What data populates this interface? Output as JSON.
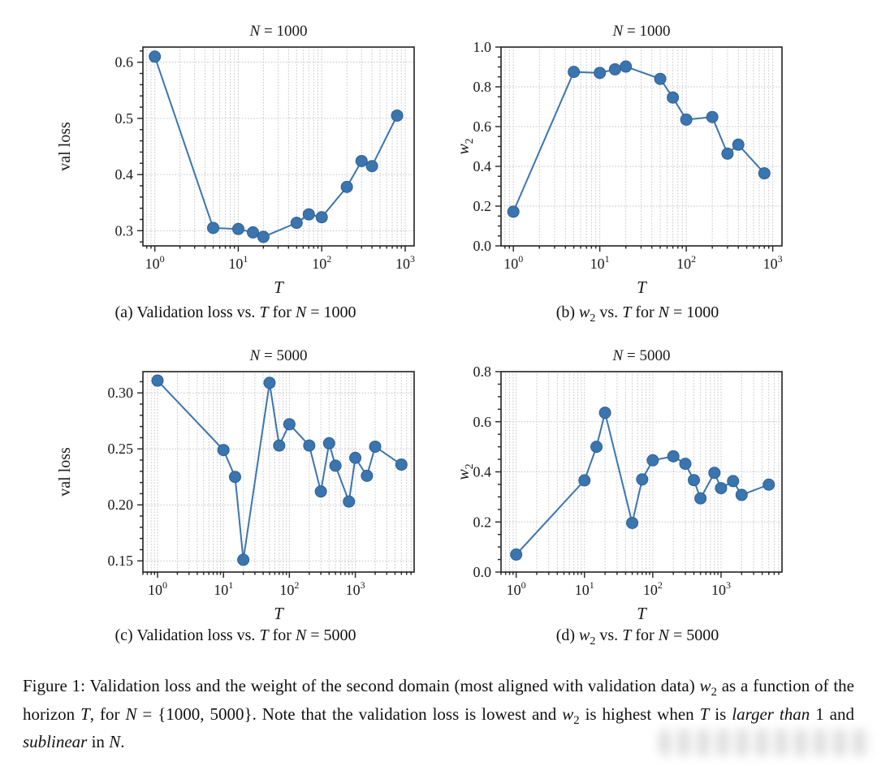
{
  "colors": {
    "accent_blue": "#3b75af",
    "marker_edge": "#2f6093",
    "grid": "#c9c9c9",
    "axis": "#222222",
    "text": "#1a1a1a",
    "background": "#ffffff"
  },
  "figure": {
    "captions": {
      "a": [
        {
          "t": "(a) Validation loss vs. "
        },
        {
          "t": "T",
          "i": true
        },
        {
          "t": " for "
        },
        {
          "t": "N",
          "i": true
        },
        {
          "t": " = 1000"
        }
      ],
      "b": [
        {
          "t": "(b) "
        },
        {
          "t": "w",
          "i": true
        },
        {
          "t": "2",
          "sub": true
        },
        {
          "t": " vs. "
        },
        {
          "t": "T",
          "i": true
        },
        {
          "t": " for "
        },
        {
          "t": "N",
          "i": true
        },
        {
          "t": " = 1000"
        }
      ],
      "c": [
        {
          "t": "(c) Validation loss vs. "
        },
        {
          "t": "T",
          "i": true
        },
        {
          "t": " for "
        },
        {
          "t": "N",
          "i": true
        },
        {
          "t": " = 5000"
        }
      ],
      "d": [
        {
          "t": "(d) "
        },
        {
          "t": "w",
          "i": true
        },
        {
          "t": "2",
          "sub": true
        },
        {
          "t": " vs. "
        },
        {
          "t": "T",
          "i": true
        },
        {
          "t": " for "
        },
        {
          "t": "N",
          "i": true
        },
        {
          "t": " = 5000"
        }
      ]
    },
    "main_caption": [
      {
        "t": "Figure 1: Validation loss and the weight of the second domain (most aligned with validation data) "
      },
      {
        "t": "w",
        "i": true
      },
      {
        "t": "2",
        "sub": true
      },
      {
        "t": " as a function of the horizon "
      },
      {
        "t": "T",
        "i": true
      },
      {
        "t": ", for "
      },
      {
        "t": "N",
        "i": true
      },
      {
        "t": " = {1000, 5000}. Note that the validation loss is lowest and "
      },
      {
        "t": "w",
        "i": true
      },
      {
        "t": "2",
        "sub": true
      },
      {
        "t": " is highest when "
      },
      {
        "t": "T",
        "i": true
      },
      {
        "t": " is "
      },
      {
        "t": "larger than",
        "i": true
      },
      {
        "t": " 1 and "
      },
      {
        "t": "sublinear",
        "i": true
      },
      {
        "t": " in "
      },
      {
        "t": "N",
        "i": true
      },
      {
        "t": "."
      }
    ]
  },
  "chart_data": [
    {
      "id": "a",
      "type": "line",
      "title": [
        {
          "t": "N",
          "i": true
        },
        {
          "t": " = 1000"
        }
      ],
      "xlabel": [
        {
          "t": "T",
          "i": true
        }
      ],
      "ylabel": [
        {
          "t": "val loss"
        }
      ],
      "xscale": "log",
      "x": [
        1,
        5,
        10,
        15,
        20,
        50,
        70,
        100,
        200,
        300,
        400,
        800
      ],
      "y": [
        0.61,
        0.305,
        0.303,
        0.297,
        0.289,
        0.314,
        0.329,
        0.324,
        0.378,
        0.424,
        0.415,
        0.505
      ],
      "xlim": [
        0.72,
        1280
      ],
      "ylim": [
        0.273,
        0.627
      ],
      "yticks": [
        0.3,
        0.4,
        0.5,
        0.6
      ],
      "ytick_labels": [
        "0.3",
        "0.4",
        "0.5",
        "0.6"
      ],
      "xtick_exponents": [
        0,
        1,
        2,
        3
      ],
      "y_minor_per_major": 5,
      "grid": true,
      "legend": "none"
    },
    {
      "id": "b",
      "type": "line",
      "title": [
        {
          "t": "N",
          "i": true
        },
        {
          "t": " = 1000"
        }
      ],
      "xlabel": [
        {
          "t": "T",
          "i": true
        }
      ],
      "ylabel": [
        {
          "t": "w",
          "i": true
        },
        {
          "t": "2",
          "sub": true
        }
      ],
      "xscale": "log",
      "x": [
        1,
        5,
        10,
        15,
        20,
        50,
        70,
        100,
        200,
        300,
        400,
        800
      ],
      "y": [
        0.172,
        0.875,
        0.87,
        0.888,
        0.902,
        0.84,
        0.746,
        0.635,
        0.648,
        0.464,
        0.509,
        0.365
      ],
      "xlim": [
        0.72,
        1280
      ],
      "ylim": [
        0.0,
        1.0
      ],
      "yticks": [
        0.0,
        0.2,
        0.4,
        0.6,
        0.8,
        1.0
      ],
      "ytick_labels": [
        "0.0",
        "0.2",
        "0.4",
        "0.6",
        "0.8",
        "1.0"
      ],
      "xtick_exponents": [
        0,
        1,
        2,
        3
      ],
      "y_minor_per_major": 4,
      "grid": true,
      "legend": "none"
    },
    {
      "id": "c",
      "type": "line",
      "title": [
        {
          "t": "N",
          "i": true
        },
        {
          "t": " = 5000"
        }
      ],
      "xlabel": [
        {
          "t": "T",
          "i": true
        }
      ],
      "ylabel": [
        {
          "t": "val loss"
        }
      ],
      "xscale": "log",
      "x": [
        1,
        10,
        15,
        20,
        50,
        70,
        100,
        200,
        300,
        400,
        500,
        800,
        1000,
        1500,
        2000,
        5000
      ],
      "y": [
        0.311,
        0.249,
        0.225,
        0.151,
        0.309,
        0.253,
        0.272,
        0.253,
        0.212,
        0.255,
        0.235,
        0.203,
        0.242,
        0.226,
        0.252,
        0.236
      ],
      "xlim": [
        0.6,
        7800
      ],
      "ylim": [
        0.14,
        0.319
      ],
      "yticks": [
        0.15,
        0.2,
        0.25,
        0.3
      ],
      "ytick_labels": [
        "0.15",
        "0.20",
        "0.25",
        "0.30"
      ],
      "xtick_exponents": [
        0,
        1,
        2,
        3
      ],
      "y_minor_per_major": 5,
      "grid": true,
      "legend": "none"
    },
    {
      "id": "d",
      "type": "line",
      "title": [
        {
          "t": "N",
          "i": true
        },
        {
          "t": " = 5000"
        }
      ],
      "xlabel": [
        {
          "t": "T",
          "i": true
        }
      ],
      "ylabel": [
        {
          "t": "w",
          "i": true
        },
        {
          "t": "2",
          "sub": true
        }
      ],
      "xscale": "log",
      "x": [
        1,
        10,
        15,
        20,
        50,
        70,
        100,
        200,
        300,
        400,
        500,
        800,
        1000,
        1500,
        2000,
        5000
      ],
      "y": [
        0.07,
        0.366,
        0.5,
        0.636,
        0.196,
        0.37,
        0.446,
        0.462,
        0.432,
        0.367,
        0.294,
        0.396,
        0.335,
        0.363,
        0.308,
        0.349
      ],
      "xlim": [
        0.6,
        7800
      ],
      "ylim": [
        0.0,
        0.8
      ],
      "yticks": [
        0.0,
        0.2,
        0.4,
        0.6,
        0.8
      ],
      "ytick_labels": [
        "0.0",
        "0.2",
        "0.4",
        "0.6",
        "0.8"
      ],
      "xtick_exponents": [
        0,
        1,
        2,
        3
      ],
      "y_minor_per_major": 4,
      "grid": true,
      "legend": "none"
    }
  ]
}
